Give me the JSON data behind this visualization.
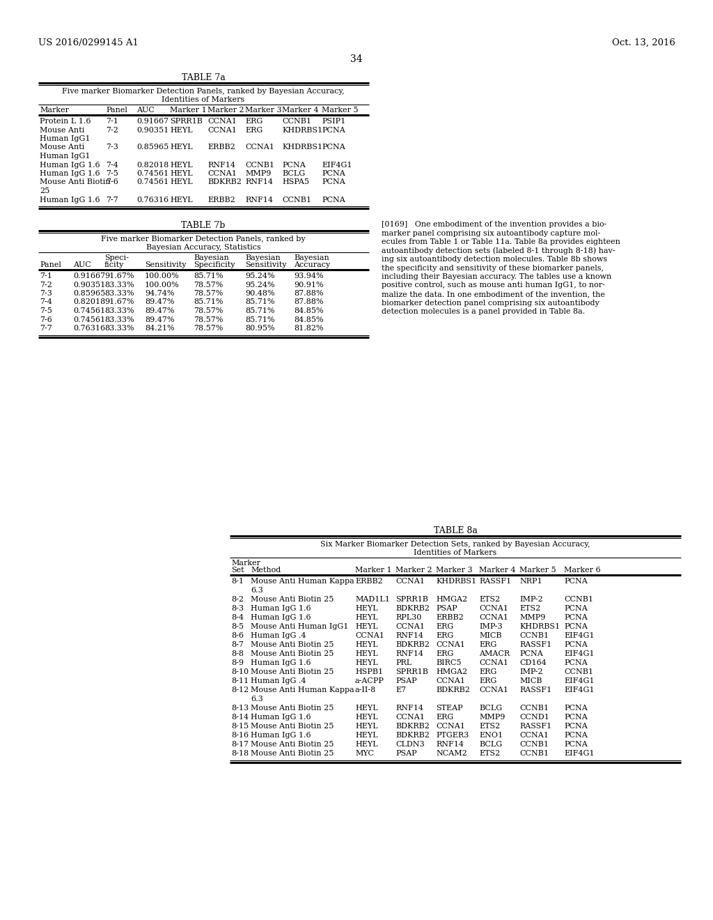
{
  "header_left": "US 2016/0299145 A1",
  "header_right": "Oct. 13, 2016",
  "page_number": "34",
  "bg_color": "#ffffff",
  "table7a": {
    "title": "TABLE 7a",
    "subtitle1": "Five marker Biomarker Detection Panels, ranked by Bayesian Accuracy,",
    "subtitle2": "Identities of Markers",
    "rows": [
      [
        "Protein L 1.6",
        "7-1",
        "0.91667",
        "SPRR1B",
        "CCNA1",
        "ERG",
        "CCNB1",
        "PSIP1"
      ],
      [
        "Mouse Anti",
        "7-2",
        "0.90351",
        "HEYL",
        "CCNA1",
        "ERG",
        "KHDRBS1",
        "PCNA"
      ],
      [
        "Human IgG1",
        "",
        "",
        "",
        "",
        "",
        "",
        ""
      ],
      [
        "Mouse Anti",
        "7-3",
        "0.85965",
        "HEYL",
        "ERBB2",
        "CCNA1",
        "KHDRBS1",
        "PCNA"
      ],
      [
        "Human IgG1",
        "",
        "",
        "",
        "",
        "",
        "",
        ""
      ],
      [
        "Human IgG 1.6",
        "7-4",
        "0.82018",
        "HEYL",
        "RNF14",
        "CCNB1",
        "PCNA",
        "EIF4G1"
      ],
      [
        "Human IgG 1.6",
        "7-5",
        "0.74561",
        "HEYL",
        "CCNA1",
        "MMP9",
        "BCLG",
        "PCNA"
      ],
      [
        "Mouse Anti Biotin",
        "7-6",
        "0.74561",
        "HEYL",
        "BDKRB2",
        "RNF14",
        "HSPA5",
        "PCNA"
      ],
      [
        "25",
        "",
        "",
        "",
        "",
        "",
        "",
        ""
      ],
      [
        "Human IgG 1.6",
        "7-7",
        "0.76316",
        "HEYL",
        "ERBB2",
        "RNF14",
        "CCNB1",
        "PCNA"
      ]
    ]
  },
  "table7b": {
    "title": "TABLE 7b",
    "subtitle1": "Five marker Biomarker Detection Panels, ranked by",
    "subtitle2": "Bayesian Accuracy, Statistics",
    "rows": [
      [
        "7-1",
        "0.91667",
        "91.67%",
        "100.00%",
        "85.71%",
        "95.24%",
        "93.94%"
      ],
      [
        "7-2",
        "0.90351",
        "83.33%",
        "100.00%",
        "78.57%",
        "95.24%",
        "90.91%"
      ],
      [
        "7-3",
        "0.85965",
        "83.33%",
        "94.74%",
        "78.57%",
        "90.48%",
        "87.88%"
      ],
      [
        "7-4",
        "0.82018",
        "91.67%",
        "89.47%",
        "85.71%",
        "85.71%",
        "87.88%"
      ],
      [
        "7-5",
        "0.74561",
        "83.33%",
        "89.47%",
        "78.57%",
        "85.71%",
        "84.85%"
      ],
      [
        "7-6",
        "0.74561",
        "83.33%",
        "89.47%",
        "78.57%",
        "85.71%",
        "84.85%"
      ],
      [
        "7-7",
        "0.76316",
        "83.33%",
        "84.21%",
        "78.57%",
        "80.95%",
        "81.82%"
      ]
    ]
  },
  "para_lines": [
    "[0169]   One embodiment of the invention provides a bio-",
    "marker panel comprising six autoantibody capture mol-",
    "ecules from Table 1 or Table 11a. Table 8a provides eighteen",
    "autoantibody detection sets (labeled 8-1 through 8-18) hav-",
    "ing six autoantibody detection molecules. Table 8b shows",
    "the specificity and sensitivity of these biomarker panels,",
    "including their Bayesian accuracy. The tables use a known",
    "positive control, such as mouse anti human IgG1, to nor-",
    "malize the data. In one embodiment of the invention, the",
    "biomarker detection panel comprising six autoantibody",
    "detection molecules is a panel provided in Table 8a."
  ],
  "table8a": {
    "title": "TABLE 8a",
    "subtitle1": "Six Marker Biomarker Detection Sets, ranked by Bayesian Accuracy,",
    "subtitle2": "Identities of Markers",
    "rows": [
      [
        "8-1",
        "Mouse Anti Human Kappa",
        "6.3",
        "ERBB2",
        "CCNA1",
        "KHDRBS1",
        "RASSF1",
        "NRP1",
        "PCNA"
      ],
      [
        "8-2",
        "Mouse Anti Biotin 25",
        "",
        "MAD1L1",
        "SPRR1B",
        "HMGA2",
        "ETS2",
        "IMP-2",
        "CCNB1"
      ],
      [
        "8-3",
        "Human IgG 1.6",
        "",
        "HEYL",
        "BDKRB2",
        "PSAP",
        "CCNA1",
        "ETS2",
        "PCNA"
      ],
      [
        "8-4",
        "Human IgG 1.6",
        "",
        "HEYL",
        "RPL30",
        "ERBB2",
        "CCNA1",
        "MMP9",
        "PCNA"
      ],
      [
        "8-5",
        "Mouse Anti Human IgG1",
        "",
        "HEYL",
        "CCNA1",
        "ERG",
        "IMP-3",
        "KHDRBS1",
        "PCNA"
      ],
      [
        "8-6",
        "Human IgG .4",
        "",
        "CCNA1",
        "RNF14",
        "ERG",
        "MICB",
        "CCNB1",
        "EIF4G1"
      ],
      [
        "8-7",
        "Mouse Anti Biotin 25",
        "",
        "HEYL",
        "BDKRB2",
        "CCNA1",
        "ERG",
        "RASSF1",
        "PCNA"
      ],
      [
        "8-8",
        "Mouse Anti Biotin 25",
        "",
        "HEYL",
        "RNF14",
        "ERG",
        "AMACR",
        "PCNA",
        "EIF4G1"
      ],
      [
        "8-9",
        "Human IgG 1.6",
        "",
        "HEYL",
        "PRL",
        "BIRC5",
        "CCNA1",
        "CD164",
        "PCNA"
      ],
      [
        "8-10",
        "Mouse Anti Biotin 25",
        "",
        "HSPB1",
        "SPRR1B",
        "HMGA2",
        "ERG",
        "IMP-2",
        "CCNB1"
      ],
      [
        "8-11",
        "Human IgG .4",
        "",
        "a-ACPP",
        "PSAP",
        "CCNA1",
        "ERG",
        "MICB",
        "EIF4G1"
      ],
      [
        "8-12",
        "Mouse Anti Human Kappa",
        "6.3",
        "a-II-8",
        "E7",
        "BDKRB2",
        "CCNA1",
        "RASSF1",
        "EIF4G1"
      ],
      [
        "8-13",
        "Mouse Anti Biotin 25",
        "",
        "HEYL",
        "RNF14",
        "STEAP",
        "BCLG",
        "CCNB1",
        "PCNA"
      ],
      [
        "8-14",
        "Human IgG 1.6",
        "",
        "HEYL",
        "CCNA1",
        "ERG",
        "MMP9",
        "CCND1",
        "PCNA"
      ],
      [
        "8-15",
        "Mouse Anti Biotin 25",
        "",
        "HEYL",
        "BDKRB2",
        "CCNA1",
        "ETS2",
        "RASSF1",
        "PCNA"
      ],
      [
        "8-16",
        "Human IgG 1.6",
        "",
        "HEYL",
        "BDKRB2",
        "PTGER3",
        "ENO1",
        "CCNA1",
        "PCNA"
      ],
      [
        "8-17",
        "Mouse Anti Biotin 25",
        "",
        "HEYL",
        "CLDN3",
        "RNF14",
        "BCLG",
        "CCNB1",
        "PCNA"
      ],
      [
        "8-18",
        "Mouse Anti Biotin 25",
        "",
        "MYC",
        "PSAP",
        "NCAM2",
        "ETS2",
        "CCNB1",
        "EIF4G1"
      ]
    ]
  }
}
